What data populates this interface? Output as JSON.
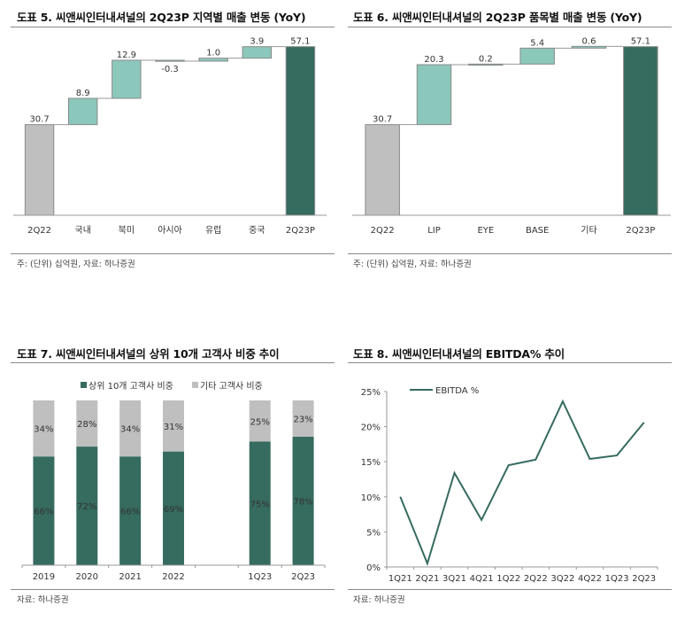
{
  "panels": [
    {
      "title": "도표 5. 씨앤씨인터내셔널의 2Q23P 지역별 매출 변동 (YoY)",
      "note": "주: (단위) 십억원, 자료: 하나증권"
    },
    {
      "title": "도표 6. 씨앤씨인터내셔널의 2Q23P 품목별 매출 변동 (YoY)",
      "note": "주: (단위) 십억원, 자료: 하나증권"
    },
    {
      "title": "도표 7. 씨앤씨인터내셔널의 상위 10개 고객사 비중 추이",
      "note": "자료: 하나증권"
    },
    {
      "title": "도표 8. 씨앤씨인터내셔널의 EBITDA% 추이",
      "note": "자료: 하나증권"
    }
  ],
  "colors": {
    "start_bar": "#bfbfbf",
    "delta_bar": "#8cc7bb",
    "end_bar": "#366b5f",
    "other_share": "#bfbfbf",
    "top10_share": "#366b5f",
    "line": "#366b5f",
    "axis": "#999999"
  },
  "chart_data": [
    {
      "type": "bar",
      "subtype": "waterfall",
      "title": "도표 5. 씨앤씨인터내셔널의 2Q23P 지역별 매출 변동 (YoY)",
      "categories": [
        "2Q22",
        "국내",
        "북미",
        "아시아",
        "유럽",
        "중국",
        "2Q23P"
      ],
      "values": [
        30.7,
        8.9,
        12.9,
        -0.3,
        1.0,
        3.9,
        57.1
      ],
      "labels": [
        "30.7",
        "8.9",
        "12.9",
        "-0.3",
        "1.0",
        "3.9",
        "57.1"
      ],
      "kinds": [
        "total",
        "delta",
        "delta",
        "delta",
        "delta",
        "delta",
        "total"
      ],
      "xlabel": "",
      "ylabel": "",
      "ylim": [
        0,
        60
      ],
      "unit": "십억원",
      "grid": false
    },
    {
      "type": "bar",
      "subtype": "waterfall",
      "title": "도표 6. 씨앤씨인터내셔널의 2Q23P 품목별 매출 변동 (YoY)",
      "categories": [
        "2Q22",
        "LIP",
        "EYE",
        "BASE",
        "기타",
        "2Q23P"
      ],
      "values": [
        30.7,
        20.3,
        0.2,
        5.4,
        0.6,
        57.1
      ],
      "labels": [
        "30.7",
        "20.3",
        "0.2",
        "5.4",
        "0.6",
        "57.1"
      ],
      "kinds": [
        "total",
        "delta",
        "delta",
        "delta",
        "delta",
        "total"
      ],
      "xlabel": "",
      "ylabel": "",
      "ylim": [
        0,
        60
      ],
      "unit": "십억원",
      "grid": false
    },
    {
      "type": "bar",
      "subtype": "stacked-100",
      "title": "도표 7. 씨앤씨인터내셔널의 상위 10개 고객사 비중 추이",
      "categories": [
        "2019",
        "2020",
        "2021",
        "2022",
        "",
        "1Q23",
        "2Q23"
      ],
      "series": [
        {
          "name": "상위 10개 고객사 비중",
          "values": [
            66,
            72,
            66,
            69,
            null,
            75,
            78
          ]
        },
        {
          "name": "기타 고객사 비중",
          "values": [
            34,
            28,
            34,
            31,
            null,
            25,
            23
          ]
        }
      ],
      "legend": "top-center",
      "ylim": [
        0,
        100
      ],
      "grid": false
    },
    {
      "type": "line",
      "title": "도표 8. 씨앤씨인터내셔널의 EBITDA% 추이",
      "categories": [
        "1Q21",
        "2Q21",
        "3Q21",
        "4Q21",
        "1Q22",
        "2Q22",
        "3Q22",
        "4Q22",
        "1Q23",
        "2Q23"
      ],
      "series": [
        {
          "name": "EBITDA %",
          "values": [
            10.0,
            0.5,
            13.4,
            6.7,
            14.5,
            15.3,
            23.6,
            15.4,
            15.9,
            20.6
          ]
        }
      ],
      "yticks": [
        "0%",
        "5%",
        "10%",
        "15%",
        "20%",
        "25%"
      ],
      "ylim": [
        0,
        25
      ],
      "legend": "top-left",
      "grid": false
    }
  ]
}
